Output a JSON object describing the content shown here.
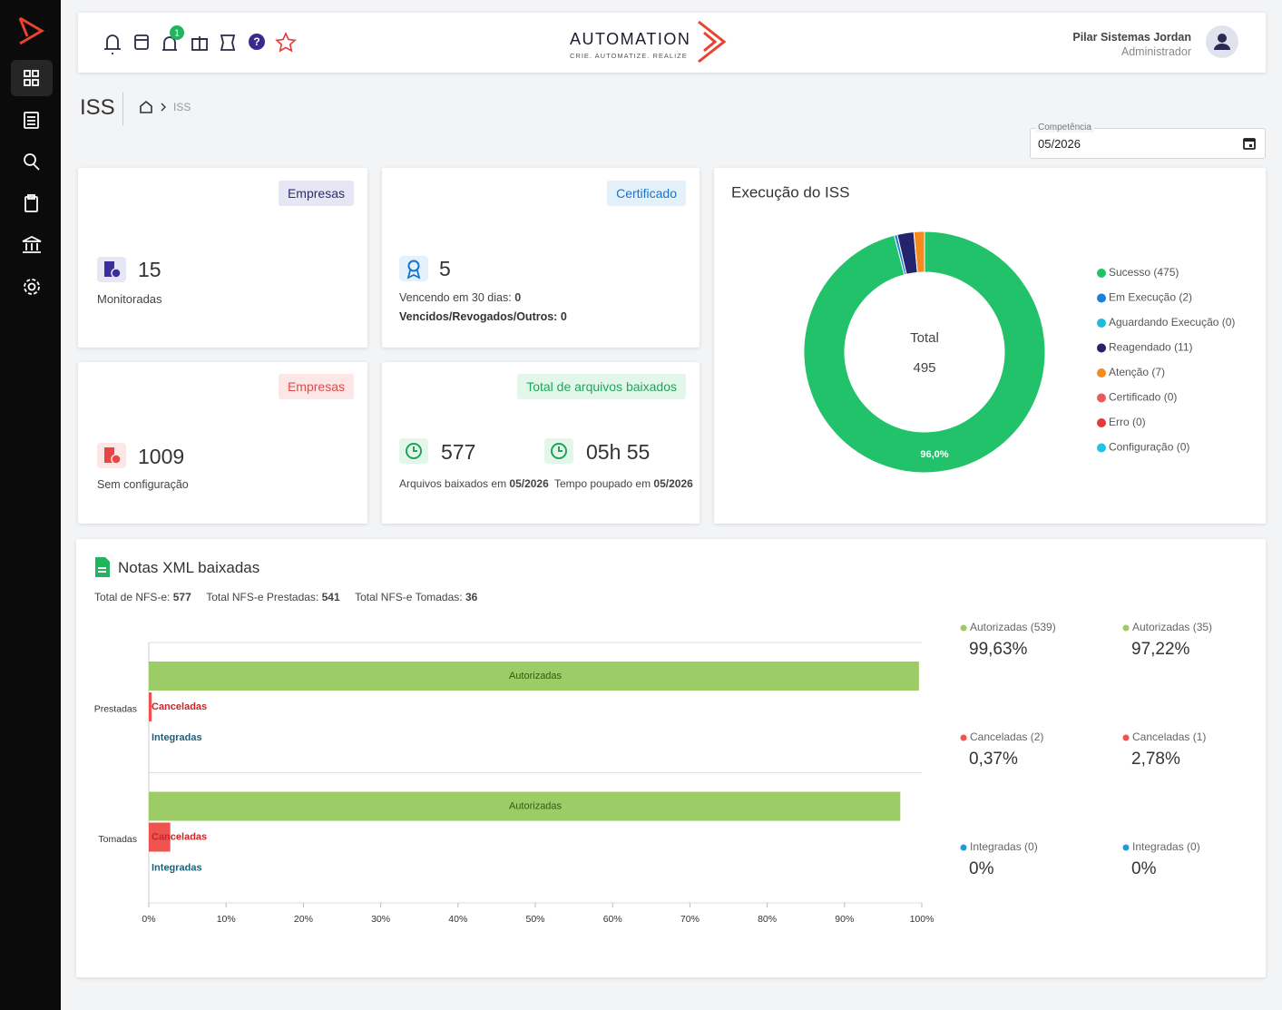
{
  "header": {
    "notification_badge": 1,
    "logo": "AUTOMATION",
    "tagline": "CRIE. AUTOMATIZE. REALIZE",
    "user_name": "Pilar Sistemas Jordan",
    "user_role": "Administrador"
  },
  "page": {
    "title": "ISS",
    "breadcrumb": "ISS",
    "period_label": "Competência",
    "period": "05/2026"
  },
  "cards": [
    {
      "tag": "Empresas",
      "value": 15,
      "label": "Monitoradas"
    },
    {
      "tag": "Certificado",
      "value": 5,
      "lines": [
        {
          "label": "Vencendo em 30 dias:",
          "value": 0
        },
        {
          "label": "Vencidos/Revogados/Outros:",
          "value": 0
        }
      ]
    },
    {
      "tag": "Empresas",
      "value": 1009,
      "label": "Sem configuração"
    },
    {
      "tag": "Total de arquivos baixados",
      "items": [
        {
          "value": 577,
          "label": "Arquivos baixados em",
          "period": "05/2026"
        },
        {
          "value": "05h 55",
          "label": "Tempo poupado em",
          "period": "05/2026"
        }
      ]
    }
  ],
  "notes_section": {
    "title": "Notas XML baixadas",
    "totals": [
      {
        "label": "Total de NFS-e:",
        "value": 577
      },
      {
        "label": "Total NFS-e Prestadas:",
        "value": 541
      },
      {
        "label": "Total NFS-e Tomadas:",
        "value": 36
      }
    ]
  },
  "chart_data": [
    {
      "type": "pie",
      "title": "Execução do ISS",
      "center_label": "Total",
      "center_value": 495,
      "categories": [
        "Sucesso (475)",
        "Em Execução (2)",
        "Aguardando Execução (0)",
        "Reagendado (11)",
        "Atenção (7)",
        "Certificado (0)",
        "Erro (0)",
        "Configuração (0)"
      ],
      "values": [
        475,
        2,
        0,
        11,
        7,
        0,
        0,
        0
      ],
      "colors": [
        "#22c26a",
        "#1e7fd6",
        "#22b8d9",
        "#23236e",
        "#f58a1f",
        "#ea5b5b",
        "#e5383b",
        "#1fc2e8"
      ],
      "slice_label": "96,0%",
      "legend": "right"
    },
    {
      "type": "bar",
      "orientation": "horizontal",
      "categories": [
        "Prestadas",
        "Tomadas"
      ],
      "series": [
        {
          "name": "Autorizadas",
          "color": "#9ccc65",
          "values": [
            99.63,
            97.22
          ],
          "value_labels": [
            "99,63%",
            "97,22%"
          ],
          "legend_labels": [
            "Autorizadas (539)",
            "Autorizadas (35)"
          ]
        },
        {
          "name": "Canceladas",
          "color": "#ef5350",
          "values": [
            0.37,
            2.78
          ],
          "value_labels": [
            "0,37%",
            "2,78%"
          ],
          "legend_labels": [
            "Canceladas (2)",
            "Canceladas (1)"
          ]
        },
        {
          "name": "Integradas",
          "color": "#1e9be0",
          "values": [
            0,
            0
          ],
          "value_labels": [
            "0%",
            "0%"
          ],
          "legend_labels": [
            "Integradas (0)",
            "Integradas (0)"
          ]
        }
      ],
      "xlim": [
        0,
        100
      ],
      "xticks": [
        {
          "value": 0,
          "label": "0%"
        },
        {
          "value": 10,
          "label": "10%"
        },
        {
          "value": 20,
          "label": "20%"
        },
        {
          "value": 30,
          "label": "30%"
        },
        {
          "value": 40,
          "label": "40%"
        },
        {
          "value": 50,
          "label": "50%"
        },
        {
          "value": 60,
          "label": "60%"
        },
        {
          "value": 70,
          "label": "70%"
        },
        {
          "value": 80,
          "label": "80%"
        },
        {
          "value": 90,
          "label": "90%"
        },
        {
          "value": 100,
          "label": "100%"
        }
      ]
    }
  ]
}
